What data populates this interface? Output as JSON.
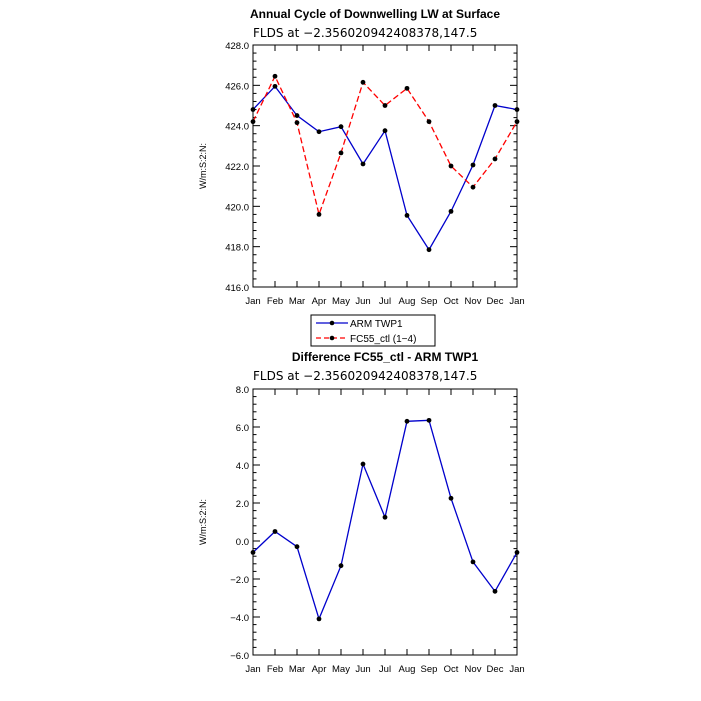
{
  "chart_data": [
    {
      "type": "line",
      "title": "Annual Cycle of Downwelling LW at Surface",
      "subtitle": "FLDS at −2.356020942408378,147.5",
      "ylabel": "W/m:S:2:N:",
      "categories": [
        "Jan",
        "Feb",
        "Mar",
        "Apr",
        "May",
        "Jun",
        "Jul",
        "Aug",
        "Sep",
        "Oct",
        "Nov",
        "Dec",
        "Jan"
      ],
      "ylim": [
        416.0,
        428.0
      ],
      "yticks": [
        "416.0",
        "418.0",
        "420.0",
        "422.0",
        "424.0",
        "426.0",
        "428.0"
      ],
      "legend_position": "bottom",
      "series": [
        {
          "name": "ARM TWP1",
          "color": "#0000cc",
          "dash": "solid",
          "values": [
            424.8,
            425.95,
            424.5,
            423.7,
            423.95,
            422.1,
            423.75,
            419.55,
            417.85,
            419.75,
            422.05,
            425.0,
            424.8
          ]
        },
        {
          "name": "FC55_ctl (1−4)",
          "color": "#ff0000",
          "dash": "dashed",
          "values": [
            424.2,
            426.45,
            424.15,
            419.6,
            422.65,
            426.15,
            425.0,
            425.85,
            424.2,
            422.0,
            420.95,
            422.35,
            424.2
          ]
        }
      ]
    },
    {
      "type": "line",
      "title": "Difference FC55_ctl - ARM TWP1",
      "subtitle": "FLDS at −2.356020942408378,147.5",
      "ylabel": "W/m:S:2:N:",
      "categories": [
        "Jan",
        "Feb",
        "Mar",
        "Apr",
        "May",
        "Jun",
        "Jul",
        "Aug",
        "Sep",
        "Oct",
        "Nov",
        "Dec",
        "Jan"
      ],
      "ylim": [
        -6.0,
        8.0
      ],
      "yticks": [
        "−6.0",
        "−4.0",
        "−2.0",
        "0.0",
        "2.0",
        "4.0",
        "6.0",
        "8.0"
      ],
      "series": [
        {
          "name": "",
          "color": "#0000cc",
          "dash": "solid",
          "values": [
            -0.6,
            0.5,
            -0.3,
            -4.1,
            -1.3,
            4.05,
            1.25,
            6.3,
            6.35,
            2.25,
            -1.1,
            -2.65,
            -0.6
          ]
        }
      ]
    }
  ]
}
